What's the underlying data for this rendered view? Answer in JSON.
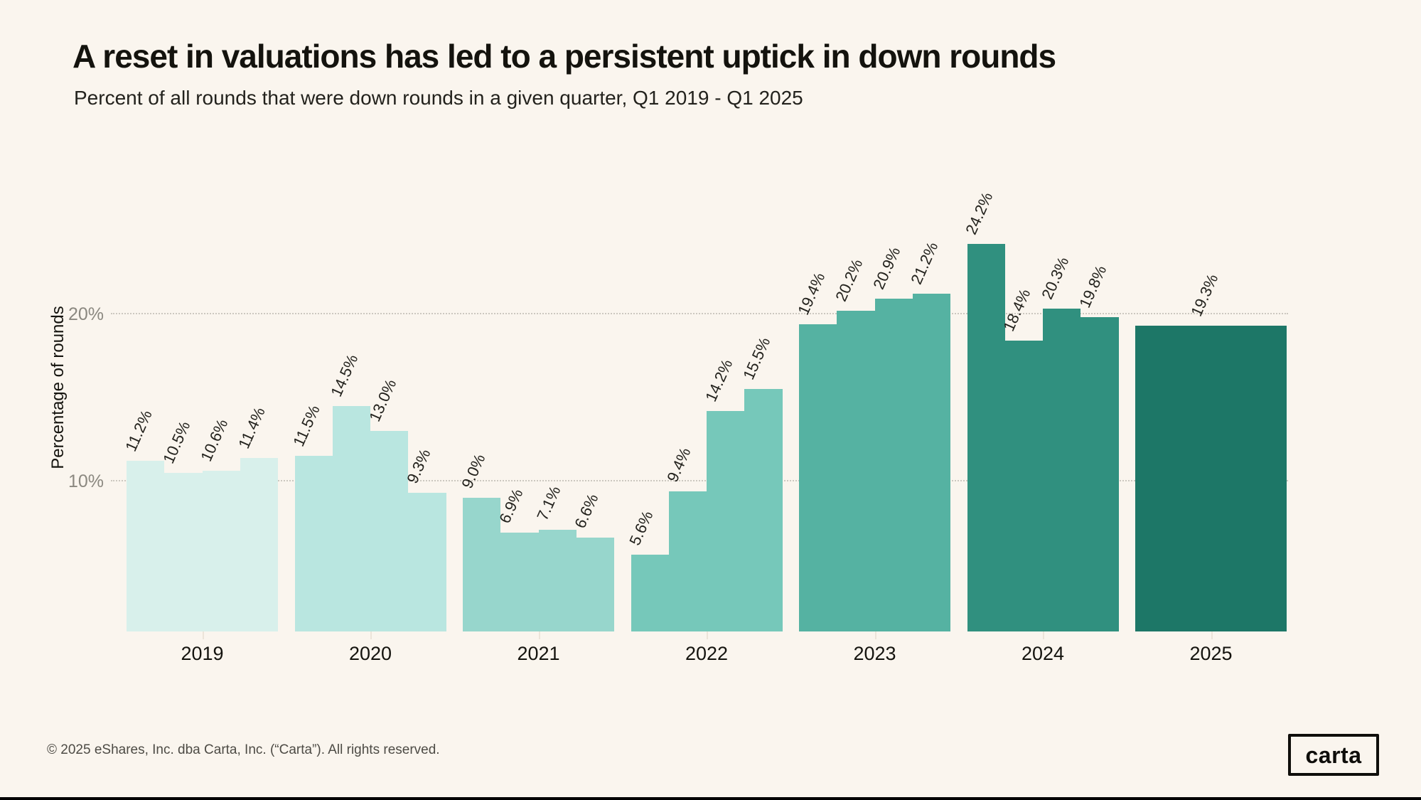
{
  "header": {
    "title": "A reset in valuations has led to a persistent uptick in down rounds",
    "subtitle": "Percent of all rounds that were down rounds in a given quarter, Q1 2019 - Q1 2025"
  },
  "footer": {
    "copyright": "© 2025 eShares, Inc. dba Carta, Inc. (“Carta”). All rights reserved.",
    "logo_text": "carta"
  },
  "chart_data": {
    "type": "bar",
    "title": "A reset in valuations has led to a persistent uptick in down rounds",
    "subtitle": "Percent of all rounds that were down rounds in a given quarter, Q1 2019 - Q1 2025",
    "ylabel": "Percentage of rounds",
    "xlabel": "",
    "grid": "horizontal-dotted",
    "legend": "none",
    "value_labels": "rotated above bars",
    "axis": {
      "y_min": 1,
      "y_max": 26,
      "ticks": [
        {
          "label": "10%",
          "value": 10
        },
        {
          "label": "20%",
          "value": 20
        }
      ]
    },
    "background_color": "#faf5ee",
    "groups": [
      {
        "year": "2019",
        "color": "#d8f0eb",
        "values": [
          11.2,
          10.5,
          10.6,
          11.4
        ],
        "labels": [
          "11.2%",
          "10.5%",
          "10.6%",
          "11.4%"
        ]
      },
      {
        "year": "2020",
        "color": "#b9e6e0",
        "values": [
          11.5,
          14.5,
          13.0,
          9.3
        ],
        "labels": [
          "11.5%",
          "14.5%",
          "13.0%",
          "9.3%"
        ]
      },
      {
        "year": "2021",
        "color": "#97d6cc",
        "values": [
          9.0,
          6.9,
          7.1,
          6.6
        ],
        "labels": [
          "9.0%",
          "6.9%",
          "7.1%",
          "6.6%"
        ]
      },
      {
        "year": "2022",
        "color": "#76c8ba",
        "values": [
          5.6,
          9.4,
          14.2,
          15.5
        ],
        "labels": [
          "5.6%",
          "9.4%",
          "14.2%",
          "15.5%"
        ]
      },
      {
        "year": "2023",
        "color": "#55b2a2",
        "values": [
          19.4,
          20.2,
          20.9,
          21.2
        ],
        "labels": [
          "19.4%",
          "20.2%",
          "20.9%",
          "21.2%"
        ]
      },
      {
        "year": "2024",
        "color": "#30907f",
        "values": [
          24.2,
          18.4,
          20.3,
          19.8
        ],
        "labels": [
          "24.2%",
          "18.4%",
          "20.3%",
          "19.8%"
        ]
      },
      {
        "year": "2025",
        "color": "#1d7767",
        "values": [
          19.3
        ],
        "labels": [
          "19.3%"
        ]
      }
    ]
  }
}
